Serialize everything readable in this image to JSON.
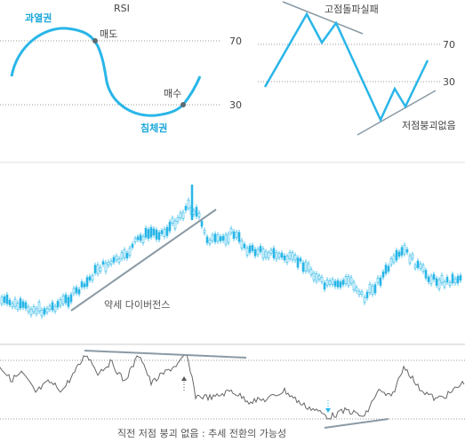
{
  "colors": {
    "accent": "#29b6e8",
    "trend_line": "#8a9aa5",
    "osc_line": "#666666",
    "level_line": "#999999"
  },
  "top_left": {
    "title": "RSI",
    "overbought_label": "과열권",
    "oversold_label": "침체권",
    "sell_label": "매도",
    "buy_label": "매수",
    "level_high": "70",
    "level_low": "30"
  },
  "top_right": {
    "failure_swing_label": "고점돌파실패",
    "no_break_label": "저점붕괴없음",
    "level_high": "70",
    "level_low": "30"
  },
  "price_chart": {
    "label": "약세 다이버전스"
  },
  "oscillator": {
    "label": "직전 저점 붕괴 없음 : 추세 전환의 가능성"
  }
}
